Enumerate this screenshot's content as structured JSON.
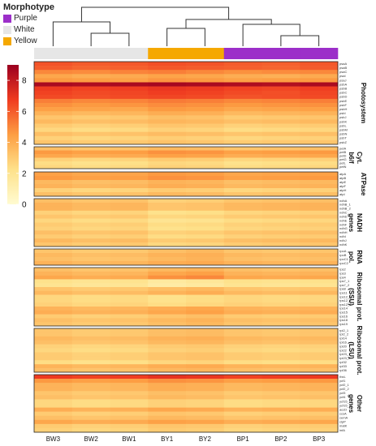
{
  "chart_data": {
    "type": "heatmap",
    "title": "",
    "legend": {
      "title": "Morphotype",
      "items": [
        {
          "label": "Purple",
          "color": "#9c2fc9"
        },
        {
          "label": "White",
          "color": "#e6e6e6"
        },
        {
          "label": "Yellow",
          "color": "#f5a800"
        }
      ]
    },
    "colorbar": {
      "min": 0,
      "max": 9,
      "ticks": [
        0,
        2,
        4,
        6,
        8
      ],
      "colors": [
        "#fffbd1",
        "#fee18a",
        "#fd9e43",
        "#f03b20",
        "#9b0020"
      ]
    },
    "samples": [
      {
        "name": "BW3",
        "morphotype": "White"
      },
      {
        "name": "BW2",
        "morphotype": "White"
      },
      {
        "name": "BW1",
        "morphotype": "White"
      },
      {
        "name": "BY1",
        "morphotype": "Yellow"
      },
      {
        "name": "BY2",
        "morphotype": "Yellow"
      },
      {
        "name": "BP1",
        "morphotype": "Purple"
      },
      {
        "name": "BP2",
        "morphotype": "Purple"
      },
      {
        "name": "BP3",
        "morphotype": "Purple"
      }
    ],
    "groups": [
      {
        "name": "Photosystem",
        "genes": [
          "psaA",
          "psaB",
          "psaC",
          "psaI",
          "psaJ",
          "psbA",
          "psbB",
          "psbC",
          "psbD",
          "psbE",
          "psbF",
          "psbH",
          "psbI",
          "psbJ",
          "psbK",
          "psbL",
          "psbM",
          "psbN",
          "psbT",
          "psbZ"
        ],
        "values": [
          [
            6.2,
            6.0,
            6.1,
            6.3,
            6.2,
            6.0,
            5.9,
            6.1
          ],
          [
            6.0,
            5.8,
            5.9,
            6.1,
            6.0,
            5.9,
            5.8,
            6.0
          ],
          [
            5.0,
            4.9,
            5.1,
            5.2,
            5.0,
            4.8,
            4.9,
            5.0
          ],
          [
            4.2,
            4.0,
            4.1,
            4.3,
            4.2,
            4.0,
            3.9,
            4.1
          ],
          [
            4.6,
            4.5,
            4.4,
            4.7,
            4.6,
            4.4,
            4.5,
            4.6
          ],
          [
            8.6,
            8.5,
            8.6,
            8.7,
            8.6,
            8.5,
            8.4,
            8.6
          ],
          [
            6.8,
            6.6,
            6.7,
            6.9,
            6.8,
            6.6,
            6.5,
            6.7
          ],
          [
            6.6,
            6.4,
            6.5,
            6.7,
            6.6,
            6.4,
            6.3,
            6.5
          ],
          [
            6.4,
            6.3,
            6.4,
            6.5,
            6.4,
            6.2,
            6.3,
            6.4
          ],
          [
            5.2,
            5.0,
            5.1,
            5.3,
            5.2,
            5.0,
            5.1,
            5.2
          ],
          [
            4.8,
            4.6,
            4.7,
            4.9,
            4.8,
            4.6,
            4.7,
            4.8
          ],
          [
            4.4,
            4.3,
            4.2,
            4.6,
            4.5,
            4.2,
            4.3,
            4.4
          ],
          [
            3.8,
            3.6,
            3.7,
            4.0,
            3.9,
            3.6,
            3.7,
            3.8
          ],
          [
            3.2,
            3.0,
            3.1,
            3.4,
            3.3,
            3.0,
            3.1,
            3.2
          ],
          [
            3.6,
            3.4,
            3.5,
            3.7,
            3.6,
            3.4,
            3.5,
            3.6
          ],
          [
            3.0,
            2.8,
            2.9,
            3.2,
            3.1,
            2.8,
            2.9,
            3.0
          ],
          [
            2.6,
            2.4,
            2.5,
            2.8,
            2.7,
            2.4,
            2.5,
            2.6
          ],
          [
            3.4,
            3.2,
            3.3,
            3.5,
            3.4,
            3.2,
            3.3,
            3.4
          ],
          [
            2.8,
            2.6,
            2.7,
            2.9,
            2.8,
            2.6,
            2.7,
            2.8
          ],
          [
            3.2,
            3.0,
            3.1,
            3.3,
            3.2,
            3.0,
            3.1,
            3.2
          ]
        ]
      },
      {
        "name": "Cyt. b6/f",
        "genes": [
          "petA",
          "petB",
          "petD",
          "petG",
          "petL",
          "petN"
        ],
        "values": [
          [
            3.4,
            3.2,
            3.3,
            3.6,
            3.5,
            3.2,
            3.3,
            3.4
          ],
          [
            4.6,
            4.4,
            4.5,
            4.8,
            4.7,
            4.4,
            4.5,
            4.6
          ],
          [
            4.2,
            4.0,
            4.1,
            4.4,
            4.3,
            4.0,
            4.1,
            4.2
          ],
          [
            2.8,
            2.6,
            2.7,
            3.0,
            2.9,
            2.6,
            2.7,
            2.8
          ],
          [
            2.4,
            2.2,
            2.3,
            2.6,
            2.5,
            2.2,
            2.3,
            2.4
          ],
          [
            2.6,
            2.4,
            2.5,
            2.8,
            2.7,
            2.4,
            2.5,
            2.6
          ]
        ]
      },
      {
        "name": "ATPase",
        "genes": [
          "atpA",
          "atpB",
          "atpE",
          "atpF",
          "atpH",
          "atpI"
        ],
        "values": [
          [
            4.4,
            4.2,
            4.3,
            4.6,
            4.5,
            4.2,
            4.3,
            4.4
          ],
          [
            4.6,
            4.4,
            4.5,
            4.8,
            4.7,
            4.4,
            4.5,
            4.6
          ],
          [
            3.6,
            3.4,
            3.5,
            3.8,
            3.7,
            3.4,
            3.5,
            3.6
          ],
          [
            3.8,
            3.6,
            3.7,
            4.0,
            3.9,
            3.6,
            3.7,
            3.8
          ],
          [
            2.8,
            2.6,
            2.7,
            3.0,
            2.9,
            2.6,
            2.7,
            2.8
          ],
          [
            3.4,
            3.2,
            3.3,
            3.6,
            3.5,
            3.2,
            3.3,
            3.4
          ]
        ]
      },
      {
        "name": "NADH genes",
        "genes": [
          "ndhA",
          "ndhB_1",
          "ndhB_2",
          "ndhC",
          "ndhD",
          "ndhE",
          "ndhF",
          "ndhG",
          "ndhH",
          "ndhI",
          "ndhJ",
          "ndhK"
        ],
        "values": [
          [
            3.4,
            3.2,
            3.3,
            2.8,
            2.9,
            3.2,
            3.3,
            3.4
          ],
          [
            3.8,
            3.6,
            3.7,
            3.2,
            3.3,
            3.6,
            3.7,
            3.8
          ],
          [
            3.8,
            3.6,
            3.7,
            3.2,
            3.3,
            3.6,
            3.7,
            3.8
          ],
          [
            2.8,
            2.6,
            2.7,
            2.2,
            2.3,
            2.6,
            2.7,
            2.8
          ],
          [
            3.2,
            3.0,
            3.1,
            2.6,
            2.7,
            3.0,
            3.1,
            3.2
          ],
          [
            2.6,
            2.4,
            2.5,
            2.0,
            2.1,
            2.4,
            2.5,
            2.6
          ],
          [
            3.0,
            2.8,
            2.9,
            2.4,
            2.5,
            2.8,
            2.9,
            3.0
          ],
          [
            2.8,
            2.6,
            2.7,
            2.2,
            2.3,
            2.6,
            2.7,
            2.8
          ],
          [
            3.4,
            3.2,
            3.3,
            2.8,
            2.9,
            3.2,
            3.3,
            3.4
          ],
          [
            3.0,
            2.8,
            2.9,
            2.4,
            2.5,
            2.8,
            2.9,
            3.0
          ],
          [
            3.6,
            3.4,
            3.5,
            3.0,
            3.1,
            3.4,
            3.5,
            3.6
          ],
          [
            3.2,
            3.0,
            3.1,
            2.6,
            2.7,
            3.0,
            3.1,
            3.2
          ]
        ]
      },
      {
        "name": "RNA pol.",
        "genes": [
          "rpoA",
          "rpoB",
          "rpoC1",
          "rpoC2"
        ],
        "values": [
          [
            3.2,
            3.0,
            3.1,
            3.4,
            3.6,
            3.2,
            3.1,
            3.2
          ],
          [
            3.6,
            3.4,
            3.5,
            3.8,
            3.9,
            3.6,
            3.5,
            3.6
          ],
          [
            3.4,
            3.2,
            3.3,
            3.6,
            3.8,
            3.4,
            3.3,
            3.4
          ],
          [
            3.8,
            3.6,
            3.7,
            4.0,
            4.1,
            3.8,
            3.7,
            3.8
          ]
        ]
      },
      {
        "name": "Ribosomal prot. (SSU)",
        "genes": [
          "rps2",
          "rps3",
          "rps4",
          "rps7_1",
          "rps7_2",
          "rps8",
          "rps11",
          "rps12_1",
          "rps12_2",
          "rps12_3",
          "rps14",
          "rps15",
          "rps16",
          "rps18",
          "rps19"
        ],
        "values": [
          [
            3.4,
            3.2,
            3.3,
            3.6,
            3.8,
            3.4,
            3.3,
            3.4
          ],
          [
            3.8,
            3.6,
            3.7,
            4.2,
            4.4,
            3.8,
            3.7,
            3.8
          ],
          [
            4.2,
            4.0,
            4.1,
            4.8,
            5.0,
            4.2,
            4.1,
            4.2
          ],
          [
            2.2,
            2.0,
            2.1,
            1.6,
            1.8,
            2.2,
            2.1,
            2.2
          ],
          [
            2.0,
            1.8,
            1.9,
            1.4,
            1.6,
            2.0,
            1.9,
            2.0
          ],
          [
            3.2,
            3.0,
            3.1,
            3.4,
            3.6,
            3.2,
            3.1,
            3.2
          ],
          [
            3.6,
            3.4,
            3.5,
            3.8,
            4.0,
            3.6,
            3.5,
            3.6
          ],
          [
            2.6,
            2.4,
            2.5,
            2.2,
            2.4,
            2.6,
            2.5,
            2.6
          ],
          [
            2.6,
            2.4,
            2.5,
            2.2,
            2.4,
            2.6,
            2.5,
            2.6
          ],
          [
            2.8,
            2.6,
            2.7,
            2.4,
            2.6,
            2.8,
            2.7,
            2.8
          ],
          [
            3.8,
            3.6,
            3.7,
            4.0,
            4.2,
            3.8,
            3.7,
            3.8
          ],
          [
            4.0,
            3.8,
            3.9,
            4.2,
            4.4,
            4.0,
            3.9,
            4.0
          ],
          [
            3.0,
            2.8,
            2.9,
            3.2,
            3.4,
            3.0,
            2.9,
            3.0
          ],
          [
            3.4,
            3.2,
            3.3,
            3.6,
            3.8,
            3.4,
            3.3,
            3.4
          ],
          [
            3.2,
            3.0,
            3.1,
            3.4,
            3.6,
            3.2,
            3.1,
            3.2
          ]
        ]
      },
      {
        "name": "Ribosomal prot. (LSU)",
        "genes": [
          "rpl2_1",
          "rpl2_2",
          "rpl14",
          "rpl16",
          "rpl20",
          "rpl22",
          "rpl23_1",
          "rpl23_2",
          "rpl32",
          "rpl33",
          "rpl36"
        ],
        "values": [
          [
            3.2,
            3.0,
            3.1,
            3.4,
            3.5,
            3.2,
            3.1,
            3.2
          ],
          [
            3.2,
            3.0,
            3.1,
            3.4,
            3.5,
            3.2,
            3.1,
            3.2
          ],
          [
            3.6,
            3.4,
            3.5,
            3.8,
            3.9,
            3.6,
            3.5,
            3.6
          ],
          [
            3.4,
            3.2,
            3.3,
            3.6,
            3.7,
            3.4,
            3.3,
            3.4
          ],
          [
            2.8,
            2.6,
            2.7,
            3.0,
            3.1,
            2.8,
            2.7,
            2.8
          ],
          [
            2.6,
            2.4,
            2.5,
            2.8,
            2.9,
            2.6,
            2.5,
            2.6
          ],
          [
            3.0,
            2.8,
            2.9,
            3.2,
            3.3,
            3.0,
            2.9,
            3.0
          ],
          [
            3.0,
            2.8,
            2.9,
            3.2,
            3.3,
            3.0,
            2.9,
            3.0
          ],
          [
            2.4,
            2.2,
            2.3,
            2.6,
            2.7,
            2.4,
            2.3,
            2.4
          ],
          [
            3.8,
            3.6,
            3.7,
            4.0,
            4.1,
            3.8,
            3.7,
            3.8
          ],
          [
            3.4,
            3.2,
            3.3,
            3.6,
            3.7,
            3.4,
            3.3,
            3.4
          ]
        ]
      },
      {
        "name": "Other genes",
        "genes": [
          "rbcL",
          "ycf1",
          "ycf2_1",
          "ycf2_2",
          "ycf3",
          "ycf4",
          "ycf15_1",
          "ycf15_2",
          "accD",
          "ccsA",
          "cemA",
          "clpP",
          "matK",
          "infA"
        ],
        "values": [
          [
            6.8,
            6.6,
            6.7,
            7.0,
            6.9,
            6.6,
            6.7,
            6.8
          ],
          [
            4.6,
            4.4,
            4.5,
            4.8,
            4.7,
            4.4,
            4.5,
            4.6
          ],
          [
            3.8,
            3.6,
            3.7,
            4.0,
            3.9,
            3.6,
            3.7,
            3.8
          ],
          [
            3.8,
            3.6,
            3.7,
            4.0,
            3.9,
            3.6,
            3.7,
            3.8
          ],
          [
            3.2,
            3.0,
            3.1,
            3.4,
            3.3,
            3.0,
            3.1,
            3.2
          ],
          [
            3.4,
            3.2,
            3.3,
            3.6,
            3.5,
            3.2,
            3.3,
            3.4
          ],
          [
            2.6,
            2.4,
            2.5,
            2.8,
            2.7,
            2.4,
            2.5,
            2.6
          ],
          [
            2.6,
            2.4,
            2.5,
            2.8,
            2.7,
            2.4,
            2.5,
            2.6
          ],
          [
            4.0,
            3.8,
            3.9,
            4.2,
            4.1,
            3.8,
            3.9,
            4.0
          ],
          [
            3.0,
            2.8,
            2.9,
            3.2,
            3.1,
            2.8,
            2.9,
            3.0
          ],
          [
            3.4,
            3.2,
            3.3,
            3.6,
            3.5,
            3.2,
            3.3,
            3.4
          ],
          [
            4.2,
            4.0,
            4.1,
            4.4,
            4.3,
            4.0,
            4.1,
            4.2
          ],
          [
            3.0,
            2.8,
            2.9,
            3.2,
            3.1,
            2.8,
            2.9,
            3.0
          ],
          [
            2.8,
            2.6,
            2.7,
            3.0,
            2.9,
            2.6,
            2.7,
            2.8
          ]
        ]
      }
    ]
  }
}
